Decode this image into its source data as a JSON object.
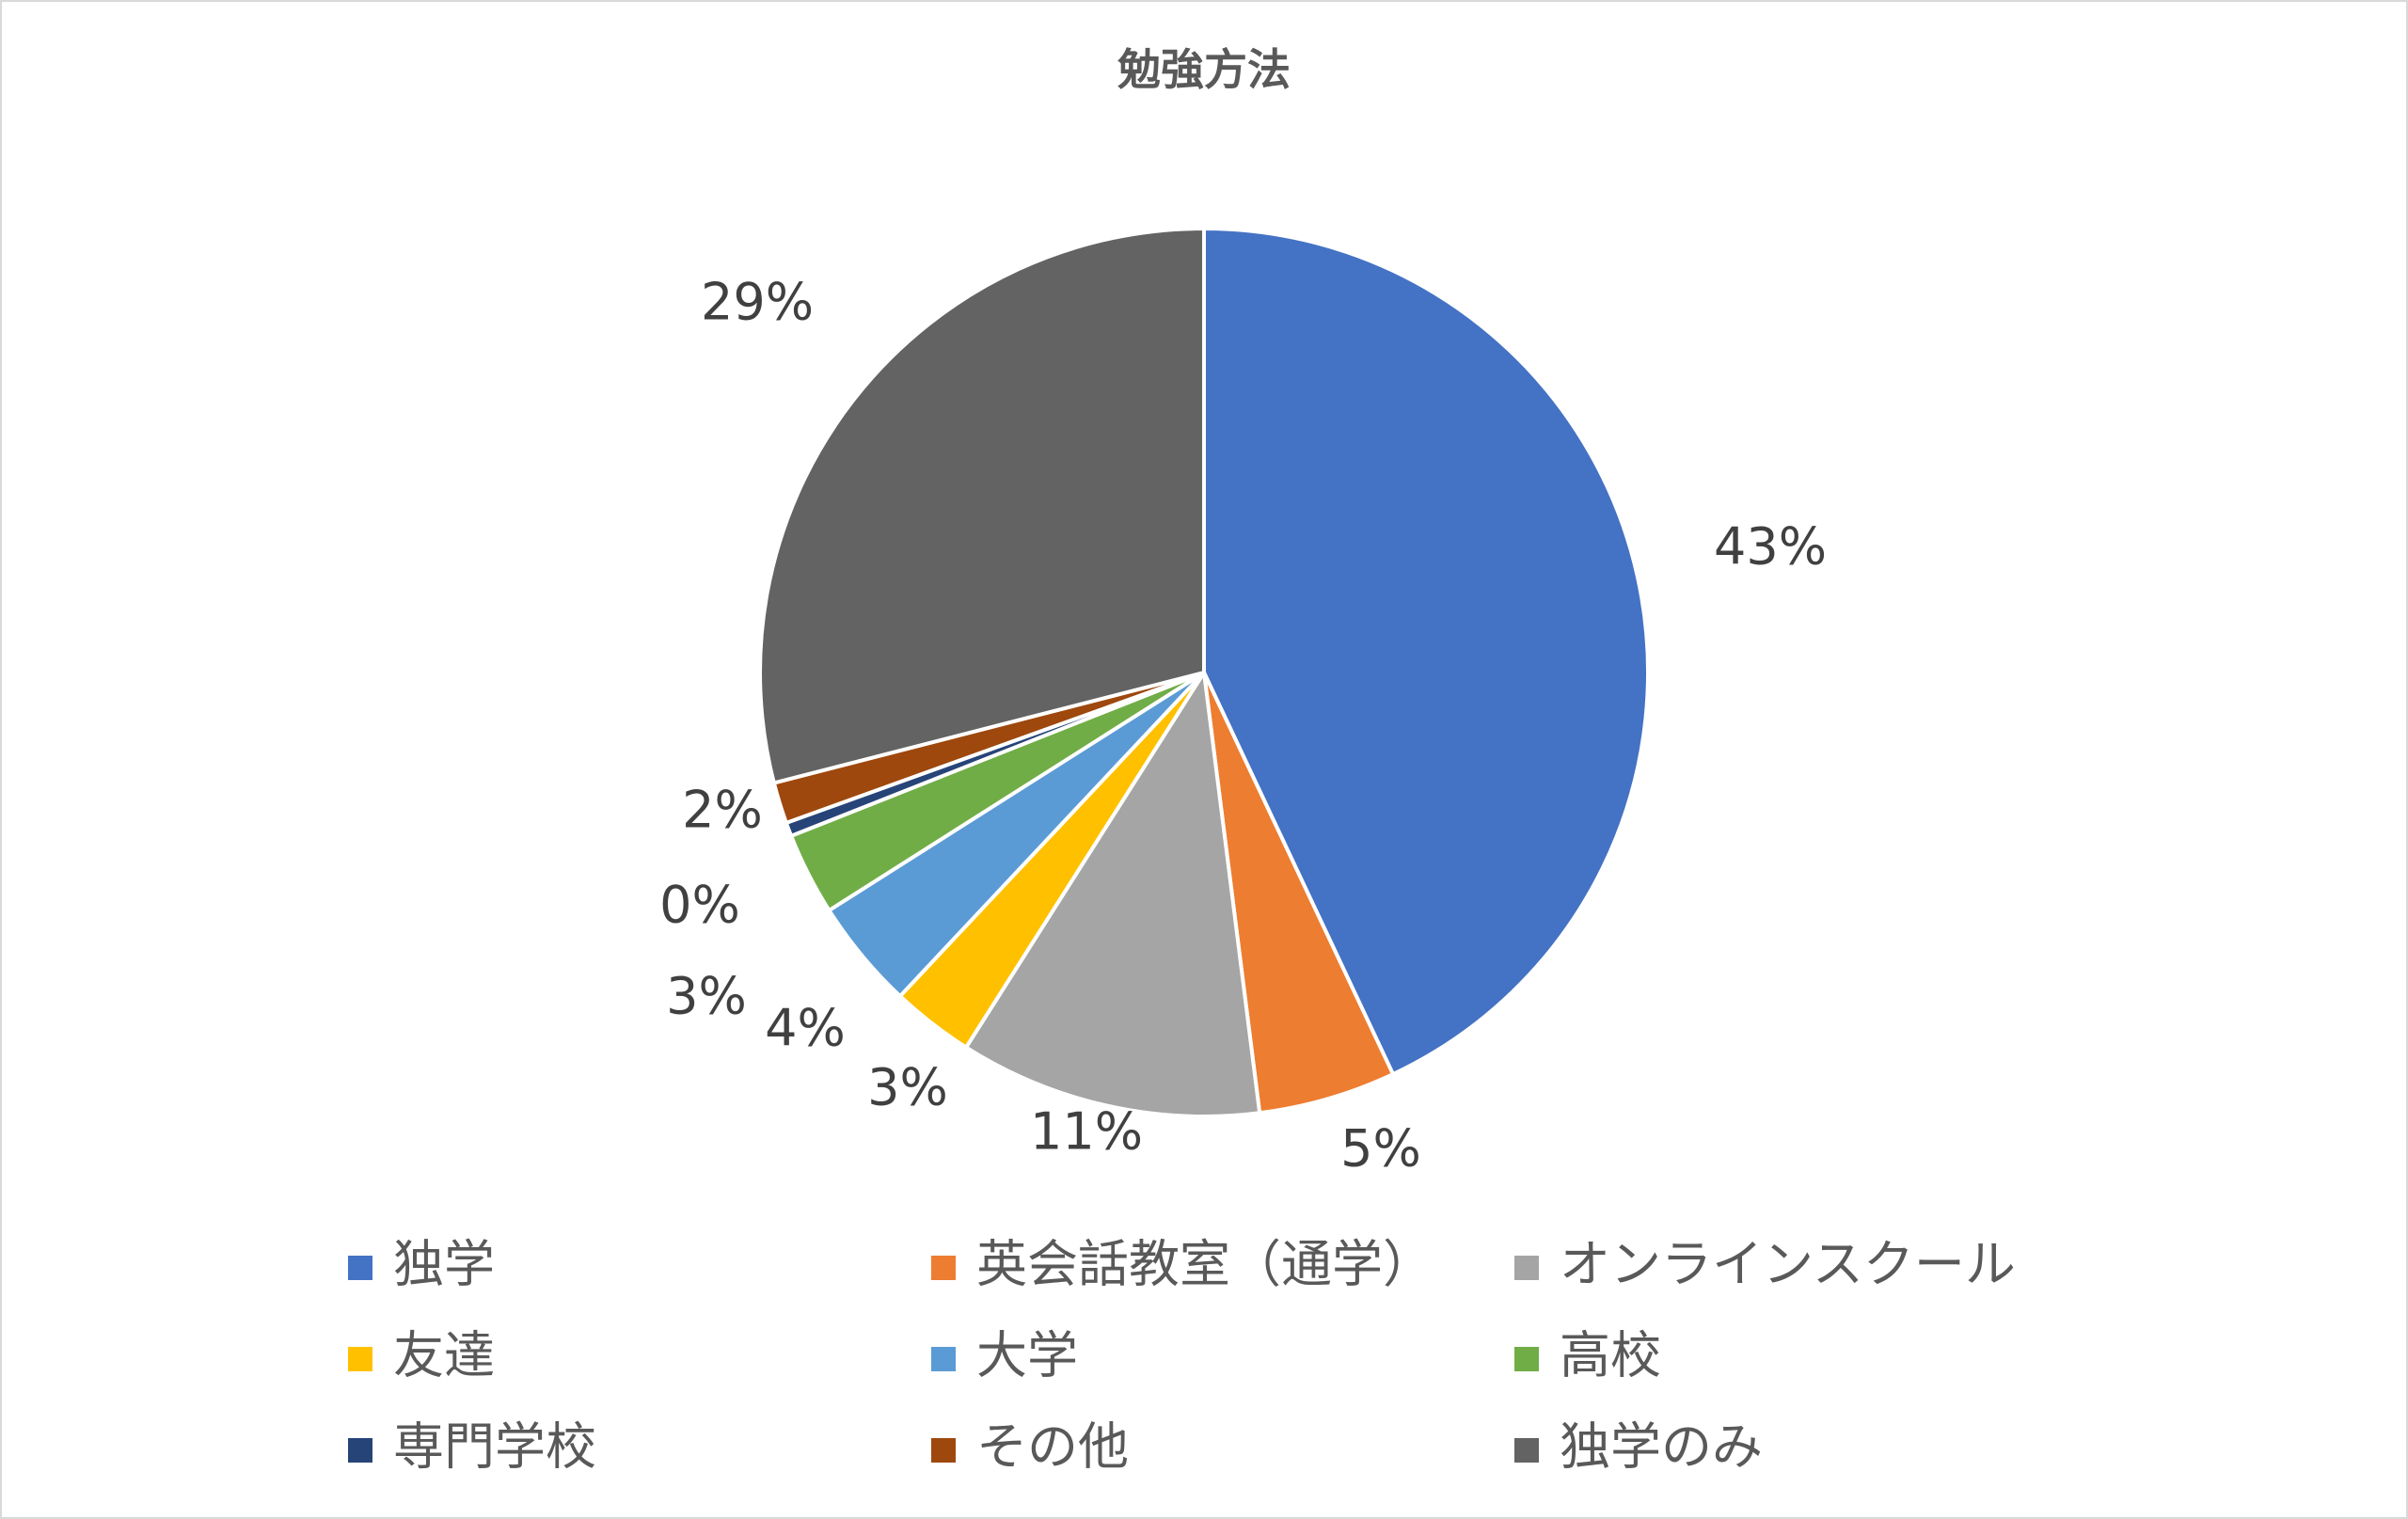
{
  "chart_data": {
    "type": "pie",
    "title": "勉強方法",
    "legend_position": "bottom",
    "categories": [
      "独学",
      "英会話教室（通学）",
      "オンラインスクール",
      "友達",
      "大学",
      "高校",
      "専門学校",
      "その他",
      "独学のみ"
    ],
    "values": [
      43,
      5,
      11,
      3,
      4,
      3,
      0.5,
      1.5,
      29
    ],
    "data_labels": [
      "43%",
      "5%",
      "11%",
      "3%",
      "4%",
      "3%",
      "0%",
      "2%",
      "29%"
    ],
    "colors": [
      "#4472C4",
      "#ED7D31",
      "#A5A5A5",
      "#FFC000",
      "#5B9BD5",
      "#70AD47",
      "#264478",
      "#9E480E",
      "#636363"
    ],
    "start_angle": "12 o'clock",
    "direction": "clockwise",
    "slice_border_color": "#FFFFFF"
  }
}
